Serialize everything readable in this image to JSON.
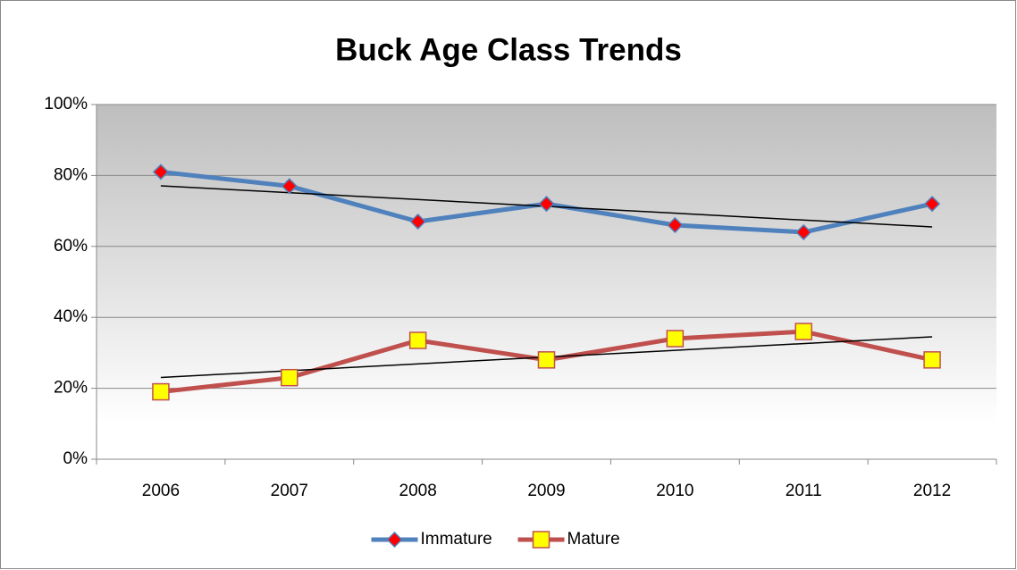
{
  "chart_data": {
    "type": "line",
    "title": "Buck Age Class Trends",
    "categories": [
      "2006",
      "2007",
      "2008",
      "2009",
      "2010",
      "2011",
      "2012"
    ],
    "series": [
      {
        "name": "Immature",
        "color": "#4f81bd",
        "marker": "diamond",
        "marker_color": "#ff0000",
        "trendline": true,
        "values": [
          81,
          77,
          67,
          72,
          66,
          64,
          72
        ]
      },
      {
        "name": "Mature",
        "color": "#c0504d",
        "marker": "square",
        "marker_color": "#ffff00",
        "trendline": true,
        "values": [
          19,
          23,
          33.5,
          28,
          34,
          36,
          28
        ]
      }
    ],
    "ylim": [
      0,
      100
    ],
    "yticks": [
      {
        "value": 0,
        "label": "0%"
      },
      {
        "value": 20,
        "label": "20%"
      },
      {
        "value": 40,
        "label": "40%"
      },
      {
        "value": 60,
        "label": "60%"
      },
      {
        "value": 80,
        "label": "80%"
      },
      {
        "value": 100,
        "label": "100%"
      }
    ],
    "grid": true,
    "legend": "bottom"
  }
}
